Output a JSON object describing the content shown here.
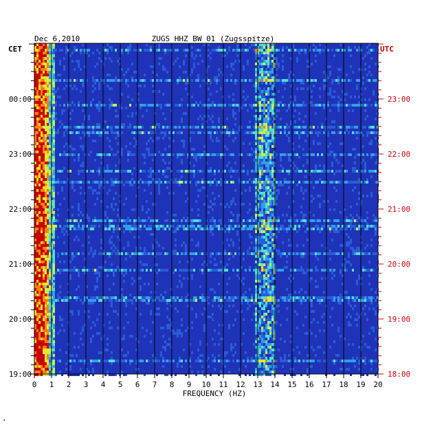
{
  "header": {
    "date": "Dec 6,2010",
    "station": "ZUGS HHZ BW 01 (Zugsspitze)",
    "left_timezone": "CET",
    "right_timezone": "UTC"
  },
  "footer": {
    "mark": "·"
  },
  "colors": {
    "utc_text": "#cc0000",
    "background_blue": "#1f33b8",
    "grid": "#000000"
  },
  "chart_data": {
    "type": "heatmap",
    "title": "ZUGS HHZ BW 01 (Zugsspitze)",
    "xlabel": "FREQUENCY (HZ)",
    "xlim": [
      0,
      20
    ],
    "x_ticks": [
      "0",
      "1",
      "2",
      "3",
      "4",
      "5",
      "6",
      "7",
      "8",
      "9",
      "10",
      "11",
      "12",
      "13",
      "14",
      "15",
      "16",
      "17",
      "18",
      "19",
      "20"
    ],
    "y_ticks_cet": [
      "00:00",
      "23:00",
      "22:00",
      "21:00",
      "20:00",
      "19:00"
    ],
    "y_ticks_utc": [
      "23:00",
      "22:00",
      "21:00",
      "20:00",
      "19:00",
      "18:00"
    ],
    "y_tick_hours_utc": [
      23,
      22,
      21,
      20,
      19,
      18
    ],
    "time_range_utc": [
      "18:00",
      "23:47"
    ],
    "colormap": [
      "#0d1a8f",
      "#1f33b8",
      "#2a5bd8",
      "#2fa0e8",
      "#4fe0d0",
      "#c8f050",
      "#ffe020",
      "#ff8010",
      "#c80000"
    ],
    "features": [
      {
        "name": "low-frequency band",
        "freq_hz": [
          0.0,
          0.8
        ],
        "intensity": "high"
      },
      {
        "name": "13-14 Hz band",
        "freq_hz": [
          12.8,
          14.0
        ],
        "intensity": "medium"
      }
    ]
  }
}
